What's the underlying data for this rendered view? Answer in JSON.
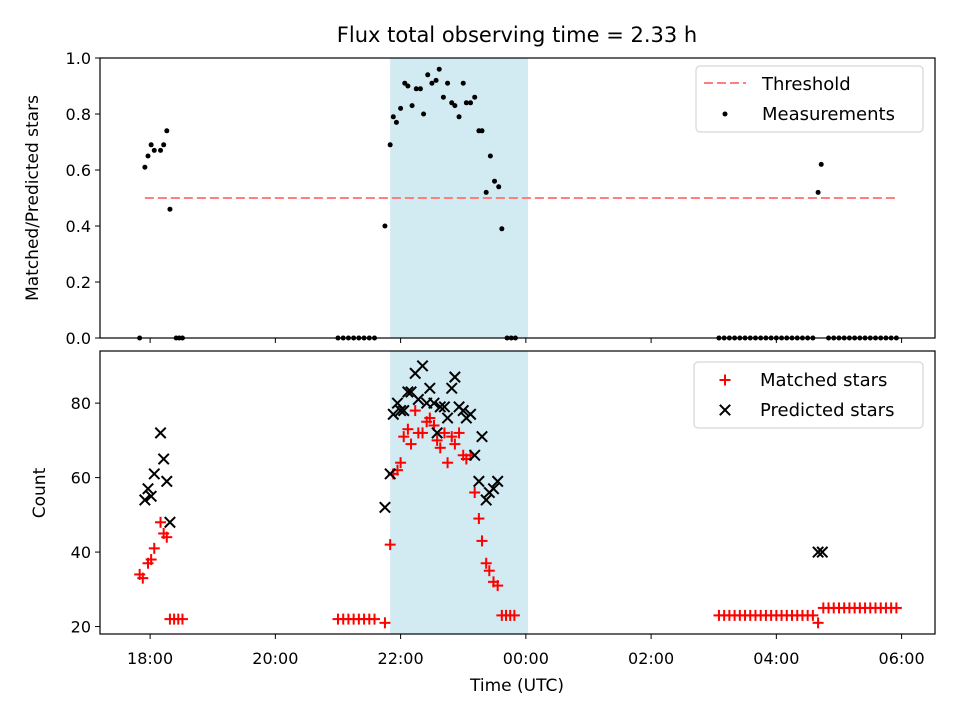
{
  "figure": {
    "title": "Flux total observing time = 2.33 h"
  },
  "chart_data": [
    {
      "type": "scatter",
      "panel": "top",
      "ylabel": "Matched/Predicted stars",
      "xlabel": "",
      "ylim": [
        0,
        1.0
      ],
      "yticks": [
        0.0,
        0.2,
        0.4,
        0.6,
        0.8,
        1.0
      ],
      "ytick_labels": [
        "0.0",
        "0.2",
        "0.4",
        "0.6",
        "0.8",
        "1.0"
      ],
      "shaded_span": [
        "21:50",
        "00:02"
      ],
      "shaded_color": "#add8e6",
      "legend_position": "top-right",
      "threshold": {
        "name": "Threshold",
        "value": 0.5,
        "x_range": [
          "17:55",
          "05:55"
        ],
        "color": "#ff7f7f",
        "style": "dashed"
      },
      "series": [
        {
          "name": "Measurements",
          "color": "#000000",
          "marker": "dot",
          "points": [
            [
              "17:50",
              0.0
            ],
            [
              "17:55",
              0.61
            ],
            [
              "17:58",
              0.65
            ],
            [
              "18:01",
              0.69
            ],
            [
              "18:04",
              0.67
            ],
            [
              "18:10",
              0.67
            ],
            [
              "18:13",
              0.69
            ],
            [
              "18:16",
              0.74
            ],
            [
              "18:19",
              0.46
            ],
            [
              "18:25",
              0.0
            ],
            [
              "18:28",
              0.0
            ],
            [
              "18:31",
              0.0
            ],
            [
              "21:00",
              0.0
            ],
            [
              "21:05",
              0.0
            ],
            [
              "21:10",
              0.0
            ],
            [
              "21:15",
              0.0
            ],
            [
              "21:20",
              0.0
            ],
            [
              "21:25",
              0.0
            ],
            [
              "21:30",
              0.0
            ],
            [
              "21:35",
              0.0
            ],
            [
              "21:45",
              0.4
            ],
            [
              "21:50",
              0.69
            ],
            [
              "21:53",
              0.79
            ],
            [
              "21:56",
              0.77
            ],
            [
              "22:00",
              0.82
            ],
            [
              "22:04",
              0.91
            ],
            [
              "22:07",
              0.9
            ],
            [
              "22:11",
              0.83
            ],
            [
              "22:15",
              0.89
            ],
            [
              "22:19",
              0.89
            ],
            [
              "22:22",
              0.8
            ],
            [
              "22:26",
              0.94
            ],
            [
              "22:30",
              0.91
            ],
            [
              "22:34",
              0.92
            ],
            [
              "22:37",
              0.96
            ],
            [
              "22:41",
              0.86
            ],
            [
              "22:45",
              0.91
            ],
            [
              "22:49",
              0.84
            ],
            [
              "22:52",
              0.83
            ],
            [
              "22:56",
              0.79
            ],
            [
              "23:00",
              0.91
            ],
            [
              "23:03",
              0.84
            ],
            [
              "23:07",
              0.84
            ],
            [
              "23:11",
              0.86
            ],
            [
              "23:15",
              0.74
            ],
            [
              "23:18",
              0.74
            ],
            [
              "23:22",
              0.52
            ],
            [
              "23:26",
              0.65
            ],
            [
              "23:30",
              0.56
            ],
            [
              "23:34",
              0.54
            ],
            [
              "23:37",
              0.39
            ],
            [
              "23:42",
              0.0
            ],
            [
              "23:46",
              0.0
            ],
            [
              "23:50",
              0.0
            ],
            [
              "03:05",
              0.0
            ],
            [
              "03:10",
              0.0
            ],
            [
              "03:15",
              0.0
            ],
            [
              "03:20",
              0.0
            ],
            [
              "03:25",
              0.0
            ],
            [
              "03:30",
              0.0
            ],
            [
              "03:35",
              0.0
            ],
            [
              "03:40",
              0.0
            ],
            [
              "03:45",
              0.0
            ],
            [
              "03:50",
              0.0
            ],
            [
              "03:55",
              0.0
            ],
            [
              "04:00",
              0.0
            ],
            [
              "04:05",
              0.0
            ],
            [
              "04:10",
              0.0
            ],
            [
              "04:15",
              0.0
            ],
            [
              "04:20",
              0.0
            ],
            [
              "04:25",
              0.0
            ],
            [
              "04:30",
              0.0
            ],
            [
              "04:35",
              0.0
            ],
            [
              "04:40",
              0.52
            ],
            [
              "04:43",
              0.62
            ],
            [
              "04:50",
              0.0
            ],
            [
              "04:55",
              0.0
            ],
            [
              "05:00",
              0.0
            ],
            [
              "05:05",
              0.0
            ],
            [
              "05:10",
              0.0
            ],
            [
              "05:15",
              0.0
            ],
            [
              "05:20",
              0.0
            ],
            [
              "05:25",
              0.0
            ],
            [
              "05:30",
              0.0
            ],
            [
              "05:35",
              0.0
            ],
            [
              "05:40",
              0.0
            ],
            [
              "05:45",
              0.0
            ],
            [
              "05:50",
              0.0
            ],
            [
              "05:55",
              0.0
            ]
          ]
        }
      ]
    },
    {
      "type": "scatter",
      "panel": "bottom",
      "xlabel": "Time (UTC)",
      "ylabel": "Count",
      "xlim": [
        "17:12",
        "06:32"
      ],
      "xticks": [
        "18:00",
        "20:00",
        "22:00",
        "00:00",
        "02:00",
        "04:00",
        "06:00"
      ],
      "xtick_labels": [
        "18:00",
        "20:00",
        "22:00",
        "00:00",
        "02:00",
        "04:00",
        "06:00"
      ],
      "ylim": [
        18,
        94
      ],
      "yticks": [
        20,
        40,
        60,
        80
      ],
      "ytick_labels": [
        "20",
        "40",
        "60",
        "80"
      ],
      "shaded_span": [
        "21:50",
        "00:02"
      ],
      "shaded_color": "#add8e6",
      "legend_position": "top-right",
      "series": [
        {
          "name": "Matched stars",
          "color": "#ff0000",
          "marker": "plus",
          "points": [
            [
              "17:50",
              34
            ],
            [
              "17:53",
              33
            ],
            [
              "17:58",
              37
            ],
            [
              "18:01",
              38
            ],
            [
              "18:04",
              41
            ],
            [
              "18:10",
              48
            ],
            [
              "18:13",
              45
            ],
            [
              "18:16",
              44
            ],
            [
              "18:19",
              22
            ],
            [
              "18:23",
              22
            ],
            [
              "18:27",
              22
            ],
            [
              "18:31",
              22
            ],
            [
              "21:00",
              22
            ],
            [
              "21:05",
              22
            ],
            [
              "21:10",
              22
            ],
            [
              "21:15",
              22
            ],
            [
              "21:20",
              22
            ],
            [
              "21:25",
              22
            ],
            [
              "21:30",
              22
            ],
            [
              "21:35",
              22
            ],
            [
              "21:45",
              21
            ],
            [
              "21:50",
              42
            ],
            [
              "21:53",
              61
            ],
            [
              "21:57",
              62
            ],
            [
              "22:00",
              64
            ],
            [
              "22:03",
              71
            ],
            [
              "22:07",
              73
            ],
            [
              "22:10",
              69
            ],
            [
              "22:14",
              78
            ],
            [
              "22:17",
              72
            ],
            [
              "22:21",
              72
            ],
            [
              "22:25",
              75
            ],
            [
              "22:28",
              76
            ],
            [
              "22:32",
              74
            ],
            [
              "22:35",
              70
            ],
            [
              "22:38",
              68
            ],
            [
              "22:42",
              72
            ],
            [
              "22:45",
              64
            ],
            [
              "22:49",
              71
            ],
            [
              "22:52",
              69
            ],
            [
              "22:56",
              72
            ],
            [
              "23:00",
              66
            ],
            [
              "23:03",
              65
            ],
            [
              "23:07",
              66
            ],
            [
              "23:11",
              56
            ],
            [
              "23:15",
              49
            ],
            [
              "23:18",
              43
            ],
            [
              "23:22",
              37
            ],
            [
              "23:25",
              35
            ],
            [
              "23:29",
              32
            ],
            [
              "23:33",
              31
            ],
            [
              "23:37",
              23
            ],
            [
              "23:41",
              23
            ],
            [
              "23:45",
              23
            ],
            [
              "23:49",
              23
            ],
            [
              "03:05",
              23
            ],
            [
              "03:10",
              23
            ],
            [
              "03:15",
              23
            ],
            [
              "03:20",
              23
            ],
            [
              "03:25",
              23
            ],
            [
              "03:30",
              23
            ],
            [
              "03:35",
              23
            ],
            [
              "03:40",
              23
            ],
            [
              "03:45",
              23
            ],
            [
              "03:50",
              23
            ],
            [
              "03:55",
              23
            ],
            [
              "04:00",
              23
            ],
            [
              "04:05",
              23
            ],
            [
              "04:10",
              23
            ],
            [
              "04:15",
              23
            ],
            [
              "04:20",
              23
            ],
            [
              "04:25",
              23
            ],
            [
              "04:30",
              23
            ],
            [
              "04:35",
              23
            ],
            [
              "04:40",
              21
            ],
            [
              "04:45",
              25
            ],
            [
              "04:50",
              25
            ],
            [
              "04:55",
              25
            ],
            [
              "05:00",
              25
            ],
            [
              "05:05",
              25
            ],
            [
              "05:10",
              25
            ],
            [
              "05:15",
              25
            ],
            [
              "05:20",
              25
            ],
            [
              "05:25",
              25
            ],
            [
              "05:30",
              25
            ],
            [
              "05:35",
              25
            ],
            [
              "05:40",
              25
            ],
            [
              "05:45",
              25
            ],
            [
              "05:50",
              25
            ],
            [
              "05:55",
              25
            ]
          ]
        },
        {
          "name": "Predicted stars",
          "color": "#000000",
          "marker": "x",
          "points": [
            [
              "17:55",
              54
            ],
            [
              "17:58",
              57
            ],
            [
              "18:01",
              55
            ],
            [
              "18:04",
              61
            ],
            [
              "18:10",
              72
            ],
            [
              "18:13",
              65
            ],
            [
              "18:16",
              59
            ],
            [
              "18:19",
              48
            ],
            [
              "21:45",
              52
            ],
            [
              "21:50",
              61
            ],
            [
              "21:53",
              77
            ],
            [
              "21:57",
              80
            ],
            [
              "22:00",
              78
            ],
            [
              "22:03",
              78
            ],
            [
              "22:07",
              83
            ],
            [
              "22:10",
              83
            ],
            [
              "22:14",
              88
            ],
            [
              "22:17",
              81
            ],
            [
              "22:21",
              90
            ],
            [
              "22:25",
              80
            ],
            [
              "22:28",
              84
            ],
            [
              "22:32",
              80
            ],
            [
              "22:35",
              72
            ],
            [
              "22:38",
              79
            ],
            [
              "22:42",
              79
            ],
            [
              "22:45",
              76
            ],
            [
              "22:49",
              84
            ],
            [
              "22:52",
              87
            ],
            [
              "22:56",
              79
            ],
            [
              "23:00",
              78
            ],
            [
              "23:03",
              76
            ],
            [
              "23:07",
              77
            ],
            [
              "23:11",
              66
            ],
            [
              "23:15",
              59
            ],
            [
              "23:18",
              71
            ],
            [
              "23:22",
              54
            ],
            [
              "23:25",
              56
            ],
            [
              "23:29",
              57
            ],
            [
              "23:33",
              59
            ],
            [
              "04:40",
              40
            ],
            [
              "04:44",
              40
            ]
          ]
        }
      ]
    }
  ]
}
